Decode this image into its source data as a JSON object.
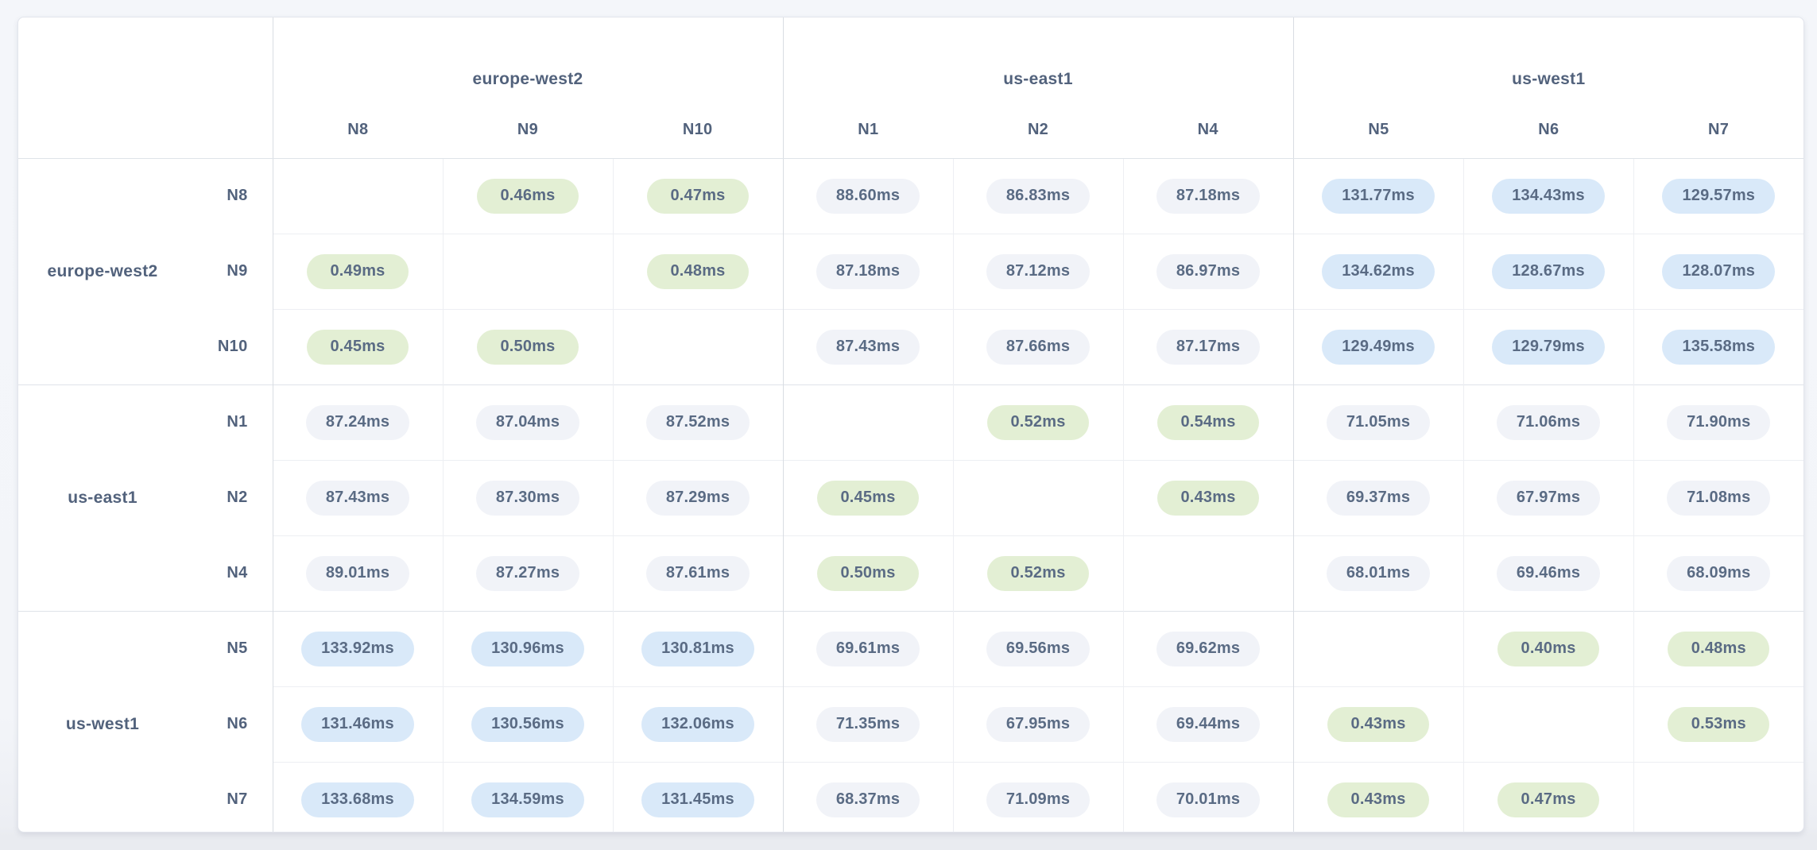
{
  "colors": {
    "green_bg": "#e3efd4",
    "gray_bg": "#f1f3f8",
    "blue_bg": "#d9e9f9",
    "label_text": "#52627c",
    "value_text": "#5a6b84"
  },
  "matrix": {
    "unit": "ms",
    "decimals": 2,
    "tier_thresholds": {
      "low_below": 1,
      "high_at_or_above": 100
    },
    "col_groups": [
      {
        "region": "europe-west2",
        "nodes": [
          "N8",
          "N9",
          "N10"
        ]
      },
      {
        "region": "us-east1",
        "nodes": [
          "N1",
          "N2",
          "N4"
        ]
      },
      {
        "region": "us-west1",
        "nodes": [
          "N5",
          "N6",
          "N7"
        ]
      }
    ],
    "row_groups": [
      {
        "region": "europe-west2",
        "rows": [
          {
            "node": "N8",
            "values": [
              null,
              0.46,
              0.47,
              88.6,
              86.83,
              87.18,
              131.77,
              134.43,
              129.57
            ]
          },
          {
            "node": "N9",
            "values": [
              0.49,
              null,
              0.48,
              87.18,
              87.12,
              86.97,
              134.62,
              128.67,
              128.07
            ]
          },
          {
            "node": "N10",
            "values": [
              0.45,
              0.5,
              null,
              87.43,
              87.66,
              87.17,
              129.49,
              129.79,
              135.58
            ]
          }
        ]
      },
      {
        "region": "us-east1",
        "rows": [
          {
            "node": "N1",
            "values": [
              87.24,
              87.04,
              87.52,
              null,
              0.52,
              0.54,
              71.05,
              71.06,
              71.9
            ]
          },
          {
            "node": "N2",
            "values": [
              87.43,
              87.3,
              87.29,
              0.45,
              null,
              0.43,
              69.37,
              67.97,
              71.08
            ]
          },
          {
            "node": "N4",
            "values": [
              89.01,
              87.27,
              87.61,
              0.5,
              0.52,
              null,
              68.01,
              69.46,
              68.09
            ]
          }
        ]
      },
      {
        "region": "us-west1",
        "rows": [
          {
            "node": "N5",
            "values": [
              133.92,
              130.96,
              130.81,
              69.61,
              69.56,
              69.62,
              null,
              0.4,
              0.48
            ]
          },
          {
            "node": "N6",
            "values": [
              131.46,
              130.56,
              132.06,
              71.35,
              67.95,
              69.44,
              0.43,
              null,
              0.53
            ]
          },
          {
            "node": "N7",
            "values": [
              133.68,
              134.59,
              131.45,
              68.37,
              71.09,
              70.01,
              0.43,
              0.47,
              null
            ]
          }
        ]
      }
    ]
  },
  "chart_data": {
    "type": "heatmap",
    "title": "",
    "unit": "ms",
    "x_labels": [
      "europe-west2 N8",
      "europe-west2 N9",
      "europe-west2 N10",
      "us-east1 N1",
      "us-east1 N2",
      "us-east1 N4",
      "us-west1 N5",
      "us-west1 N6",
      "us-west1 N7"
    ],
    "y_labels": [
      "europe-west2 N8",
      "europe-west2 N9",
      "europe-west2 N10",
      "us-east1 N1",
      "us-east1 N2",
      "us-east1 N4",
      "us-west1 N5",
      "us-west1 N6",
      "us-west1 N7"
    ],
    "values": [
      [
        null,
        0.46,
        0.47,
        88.6,
        86.83,
        87.18,
        131.77,
        134.43,
        129.57
      ],
      [
        0.49,
        null,
        0.48,
        87.18,
        87.12,
        86.97,
        134.62,
        128.67,
        128.07
      ],
      [
        0.45,
        0.5,
        null,
        87.43,
        87.66,
        87.17,
        129.49,
        129.79,
        135.58
      ],
      [
        87.24,
        87.04,
        87.52,
        null,
        0.52,
        0.54,
        71.05,
        71.06,
        71.9
      ],
      [
        87.43,
        87.3,
        87.29,
        0.45,
        null,
        0.43,
        69.37,
        67.97,
        71.08
      ],
      [
        89.01,
        87.27,
        87.61,
        0.5,
        0.52,
        null,
        68.01,
        69.46,
        68.09
      ],
      [
        133.92,
        130.96,
        130.81,
        69.61,
        69.56,
        69.62,
        null,
        0.4,
        0.48
      ],
      [
        131.46,
        130.56,
        132.06,
        71.35,
        67.95,
        69.44,
        0.43,
        null,
        0.53
      ],
      [
        133.68,
        134.59,
        131.45,
        68.37,
        71.09,
        70.01,
        0.43,
        0.47,
        null
      ]
    ]
  }
}
